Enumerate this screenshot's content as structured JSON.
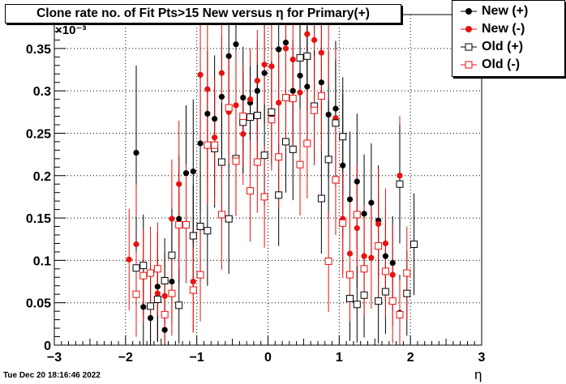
{
  "chart_data": {
    "type": "scatter",
    "title": "Clone rate no. of Fit Pts>15 New versus  η for Primary(+)",
    "xlabel": "η",
    "ylabel": "",
    "y_multiplier_label": "×10⁻³",
    "xlim": [
      -3,
      3
    ],
    "ylim": [
      0,
      0.39
    ],
    "x_ticks": [
      "−3",
      "−2",
      "−1",
      "0",
      "1",
      "2",
      "3"
    ],
    "y_ticks": [
      "0",
      "0.05",
      "0.1",
      "0.15",
      "0.2",
      "0.25",
      "0.3",
      "0.35"
    ],
    "grid": true,
    "legend_position": "top-right",
    "series": [
      {
        "name": "New (+)",
        "color": "#000000",
        "marker": "filled-circle",
        "points": [
          [
            -1.85,
            0.227,
            0.103
          ],
          [
            -1.75,
            0.045,
            0.05
          ],
          [
            -1.65,
            0.032,
            0.055
          ],
          [
            -1.55,
            0.069,
            0.065
          ],
          [
            -1.45,
            0.018,
            0.045
          ],
          [
            -1.35,
            0.075,
            0.05
          ],
          [
            -1.25,
            0.149,
            0.075
          ],
          [
            -1.15,
            0.203,
            0.08
          ],
          [
            -1.05,
            0.205,
            0.085
          ],
          [
            -0.95,
            0.238,
            0.08
          ],
          [
            -0.85,
            0.273,
            0.075
          ],
          [
            -0.75,
            0.267,
            0.075
          ],
          [
            -0.65,
            0.293,
            0.07
          ],
          [
            -0.55,
            0.341,
            0.07
          ],
          [
            -0.45,
            0.355,
            0.06
          ],
          [
            -0.35,
            0.292,
            0.06
          ],
          [
            -0.25,
            0.286,
            0.06
          ],
          [
            -0.15,
            0.3,
            0.06
          ],
          [
            -0.05,
            0.321,
            0.06
          ],
          [
            0.05,
            0.272,
            0.06
          ],
          [
            0.15,
            0.349,
            0.06
          ],
          [
            0.25,
            0.357,
            0.06
          ],
          [
            0.35,
            0.3,
            0.06
          ],
          [
            0.45,
            0.318,
            0.06
          ],
          [
            0.55,
            0.305,
            0.07
          ],
          [
            0.65,
            0.389,
            0.07
          ],
          [
            0.75,
            0.31,
            0.07
          ],
          [
            0.85,
            0.272,
            0.075
          ],
          [
            0.95,
            0.279,
            0.08
          ],
          [
            1.05,
            0.212,
            0.085
          ],
          [
            1.15,
            0.172,
            0.08
          ],
          [
            1.25,
            0.193,
            0.08
          ],
          [
            1.35,
            0.155,
            0.07
          ],
          [
            1.45,
            0.168,
            0.07
          ],
          [
            1.55,
            0.147,
            0.065
          ],
          [
            1.65,
            0.105,
            0.055
          ],
          [
            1.75,
            0.097,
            0.055
          ],
          [
            1.85,
            0.038,
            0.045
          ]
        ]
      },
      {
        "name": "New (-)",
        "color": "#e8120f",
        "marker": "filled-circle",
        "points": [
          [
            -1.95,
            0.101,
            0.06
          ],
          [
            -1.85,
            0.119,
            0.07
          ],
          [
            -1.55,
            0.061,
            0.055
          ],
          [
            -1.45,
            0.058,
            0.05
          ],
          [
            -1.35,
            0.149,
            0.07
          ],
          [
            -1.25,
            0.19,
            0.075
          ],
          [
            -1.15,
            0.143,
            0.07
          ],
          [
            -1.05,
            0.075,
            0.06
          ],
          [
            -0.95,
            0.319,
            0.08
          ],
          [
            -0.85,
            0.302,
            0.075
          ],
          [
            -0.75,
            0.245,
            0.07
          ],
          [
            -0.65,
            0.321,
            0.07
          ],
          [
            -0.55,
            0.275,
            0.065
          ],
          [
            -0.45,
            0.283,
            0.065
          ],
          [
            -0.35,
            0.249,
            0.06
          ],
          [
            -0.25,
            0.29,
            0.06
          ],
          [
            -0.15,
            0.312,
            0.06
          ],
          [
            -0.05,
            0.331,
            0.06
          ],
          [
            0.05,
            0.329,
            0.06
          ],
          [
            0.15,
            0.286,
            0.06
          ],
          [
            0.25,
            0.35,
            0.06
          ],
          [
            0.35,
            0.337,
            0.06
          ],
          [
            0.45,
            0.298,
            0.06
          ],
          [
            0.55,
            0.367,
            0.065
          ],
          [
            0.65,
            0.36,
            0.07
          ],
          [
            0.75,
            0.345,
            0.07
          ],
          [
            0.85,
            0.381,
            0.075
          ],
          [
            0.95,
            0.268,
            0.08
          ],
          [
            1.05,
            0.149,
            0.07
          ],
          [
            1.15,
            0.108,
            0.065
          ],
          [
            1.25,
            0.138,
            0.07
          ],
          [
            1.35,
            0.105,
            0.06
          ],
          [
            1.45,
            0.103,
            0.06
          ],
          [
            1.55,
            0.143,
            0.065
          ],
          [
            1.65,
            0.12,
            0.065
          ],
          [
            1.75,
            0.083,
            0.06
          ],
          [
            1.85,
            0.2,
            0.07
          ]
        ]
      },
      {
        "name": "Old (+)",
        "color": "#000000",
        "marker": "open-square",
        "points": [
          [
            -1.85,
            0.091,
            0.06
          ],
          [
            -1.75,
            0.094,
            0.06
          ],
          [
            -1.65,
            0.046,
            0.05
          ],
          [
            -1.55,
            0.054,
            0.05
          ],
          [
            -1.45,
            0.076,
            0.05
          ],
          [
            -1.35,
            0.106,
            0.055
          ],
          [
            -1.25,
            0.047,
            0.045
          ],
          [
            -1.05,
            0.129,
            0.06
          ],
          [
            -0.95,
            0.14,
            0.065
          ],
          [
            -0.85,
            0.135,
            0.065
          ],
          [
            -0.75,
            0.232,
            0.07
          ],
          [
            -0.65,
            0.216,
            0.07
          ],
          [
            -0.55,
            0.149,
            0.065
          ],
          [
            -0.45,
            0.22,
            0.065
          ],
          [
            -0.35,
            0.263,
            0.06
          ],
          [
            -0.25,
            0.269,
            0.06
          ],
          [
            -0.15,
            0.271,
            0.06
          ],
          [
            -0.05,
            0.224,
            0.06
          ],
          [
            0.05,
            0.275,
            0.06
          ],
          [
            0.15,
            0.177,
            0.06
          ],
          [
            0.25,
            0.24,
            0.06
          ],
          [
            0.35,
            0.231,
            0.06
          ],
          [
            0.45,
            0.339,
            0.06
          ],
          [
            0.55,
            0.341,
            0.065
          ],
          [
            0.65,
            0.282,
            0.065
          ],
          [
            0.75,
            0.173,
            0.065
          ],
          [
            0.85,
            0.219,
            0.07
          ],
          [
            0.95,
            0.262,
            0.075
          ],
          [
            1.05,
            0.246,
            0.07
          ],
          [
            1.15,
            0.055,
            0.05
          ],
          [
            1.25,
            0.048,
            0.045
          ],
          [
            1.35,
            0.059,
            0.05
          ],
          [
            1.55,
            0.052,
            0.05
          ],
          [
            1.65,
            0.063,
            0.05
          ],
          [
            1.85,
            0.19,
            0.07
          ],
          [
            1.95,
            0.061,
            0.05
          ],
          [
            2.05,
            0.119,
            0.06
          ]
        ]
      },
      {
        "name": "Old (-)",
        "color": "#e8120f",
        "marker": "open-square",
        "points": [
          [
            -1.85,
            0.06,
            0.05
          ],
          [
            -1.75,
            0.082,
            0.055
          ],
          [
            -1.65,
            0.085,
            0.055
          ],
          [
            -1.55,
            0.09,
            0.055
          ],
          [
            -1.45,
            0.036,
            0.04
          ],
          [
            -1.35,
            0.061,
            0.05
          ],
          [
            -1.25,
            0.142,
            0.065
          ],
          [
            -1.15,
            0.142,
            0.065
          ],
          [
            -1.05,
            0.065,
            0.05
          ],
          [
            -0.95,
            0.083,
            0.055
          ],
          [
            -0.85,
            0.236,
            0.07
          ],
          [
            -0.75,
            0.236,
            0.07
          ],
          [
            -0.65,
            0.154,
            0.065
          ],
          [
            -0.55,
            0.28,
            0.065
          ],
          [
            -0.45,
            0.217,
            0.065
          ],
          [
            -0.35,
            0.27,
            0.06
          ],
          [
            -0.25,
            0.182,
            0.06
          ],
          [
            -0.15,
            0.216,
            0.06
          ],
          [
            -0.05,
            0.175,
            0.06
          ],
          [
            0.05,
            0.266,
            0.06
          ],
          [
            0.15,
            0.222,
            0.06
          ],
          [
            0.25,
            0.292,
            0.06
          ],
          [
            0.35,
            0.291,
            0.06
          ],
          [
            0.45,
            0.213,
            0.06
          ],
          [
            0.55,
            0.238,
            0.065
          ],
          [
            0.65,
            0.277,
            0.065
          ],
          [
            0.75,
            0.294,
            0.065
          ],
          [
            0.85,
            0.099,
            0.06
          ],
          [
            0.95,
            0.195,
            0.065
          ],
          [
            1.05,
            0.144,
            0.06
          ],
          [
            1.15,
            0.083,
            0.055
          ],
          [
            1.25,
            0.154,
            0.06
          ],
          [
            1.35,
            0.09,
            0.055
          ],
          [
            1.55,
            0.117,
            0.06
          ],
          [
            1.65,
            0.087,
            0.055
          ],
          [
            1.75,
            0.052,
            0.05
          ],
          [
            1.85,
            0.036,
            0.04
          ],
          [
            1.95,
            0.085,
            0.055
          ]
        ]
      }
    ]
  },
  "legend": [
    {
      "label": "New (+)",
      "color": "#000000",
      "marker": "filled-circle"
    },
    {
      "label": "New (-)",
      "color": "#e8120f",
      "marker": "filled-circle"
    },
    {
      "label": "Old (+)",
      "color": "#000000",
      "marker": "open-square"
    },
    {
      "label": "Old (-)",
      "color": "#e8120f",
      "marker": "open-square"
    }
  ],
  "footer": {
    "date": "Tue Dec 20 18:16:46 2022"
  }
}
